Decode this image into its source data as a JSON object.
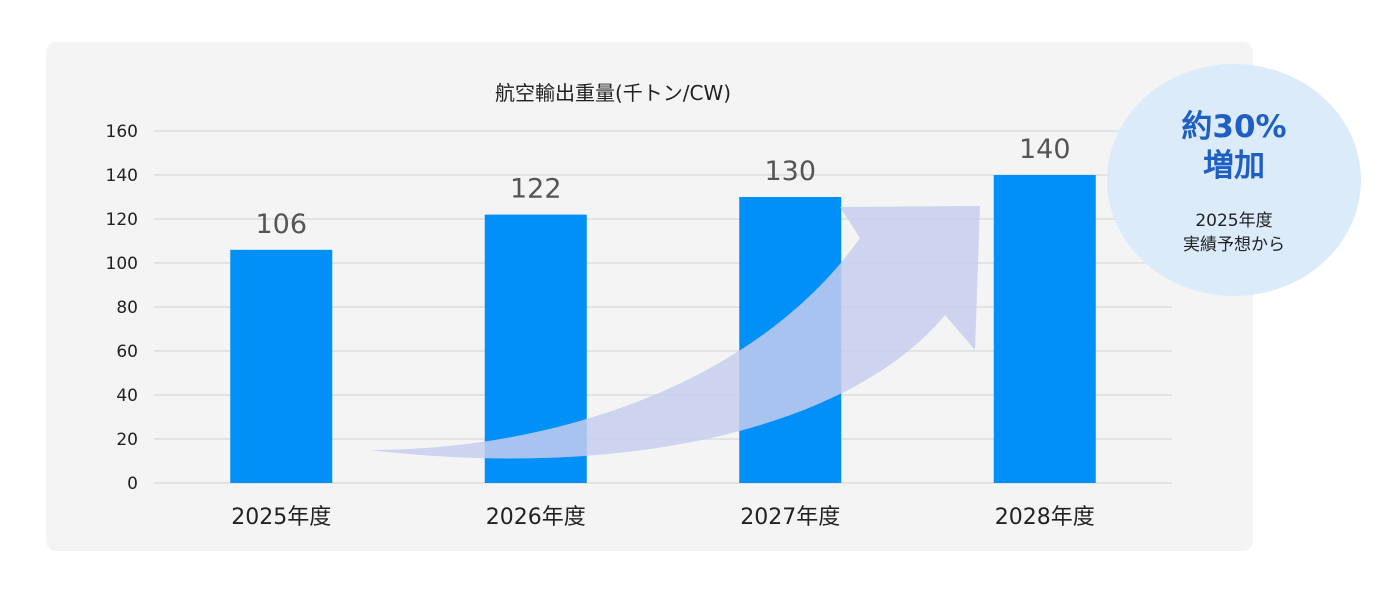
{
  "chart_data": {
    "type": "bar",
    "title": "航空輸出重量(千トン/CW)",
    "categories": [
      "2025年度",
      "2026年度",
      "2027年度",
      "2028年度"
    ],
    "values": [
      106,
      122,
      130,
      140
    ],
    "yticks": [
      "0",
      "20",
      "40",
      "60",
      "80",
      "100",
      "120",
      "140",
      "160"
    ],
    "ylim": [
      0,
      160
    ],
    "grid": true,
    "bar_color": "#0090f7",
    "arrow_color": "#c7cdee",
    "annotation": {
      "highlight_lines": [
        "約30%",
        "増加"
      ],
      "note_lines": [
        "2025年度",
        "実績予想から"
      ],
      "highlight_color": "#1f5fc4",
      "circle_color": "#dcebfa"
    }
  }
}
